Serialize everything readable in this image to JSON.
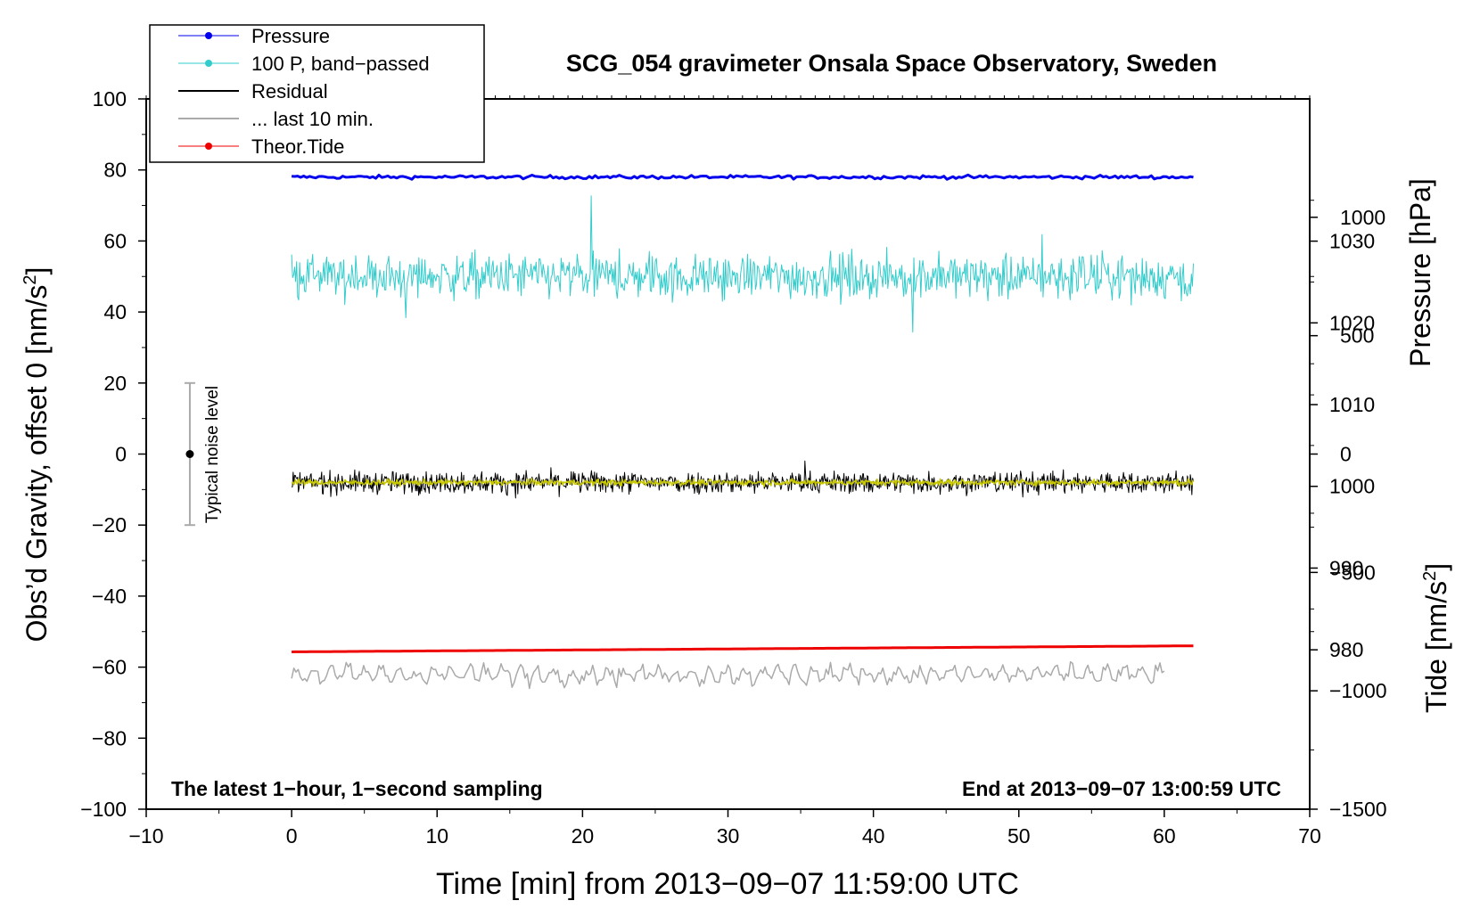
{
  "chart_data": {
    "type": "line",
    "title": "SCG_054 gravimeter Onsala Space Observatory, Sweden",
    "xlabel": "Time [min] from 2013−09−07 11:59:00 UTC",
    "ylabel_main": "Obs’d Gravity, offset 0 [nm/s",
    "ylabel_main_sup": "2",
    "ylabel_main_end": "]",
    "ylabel_pressure": "Pressure [hPa]",
    "ylabel_tide": "Tide [nm/s",
    "ylabel_tide_sup": "2",
    "ylabel_tide_end": "]",
    "xlim": [
      -10,
      70
    ],
    "ylim": [
      -100,
      100
    ],
    "x_ticks": [
      -10,
      0,
      10,
      20,
      30,
      40,
      50,
      60,
      70
    ],
    "x_tick_labels": [
      "−10",
      "0",
      "10",
      "20",
      "30",
      "40",
      "50",
      "60",
      "70"
    ],
    "y_ticks": [
      -100,
      -80,
      -60,
      -40,
      -20,
      0,
      20,
      40,
      60,
      80,
      100
    ],
    "y_tick_labels": [
      "−100",
      "−80",
      "−60",
      "−40",
      "−20",
      "0",
      "20",
      "40",
      "60",
      "80",
      "100"
    ],
    "pressure_axis": {
      "ticks": [
        980,
        990,
        1000,
        1010,
        1020,
        1030
      ],
      "tick_labels": [
        "980",
        "990",
        "1000",
        "1010",
        "1020",
        "1030"
      ],
      "range": [
        960.5,
        1047.4
      ]
    },
    "tide_axis": {
      "ticks": [
        -1500,
        -1000,
        -500,
        0,
        500,
        1000
      ],
      "tick_labels": [
        "−1500",
        "−1000",
        "−500",
        "0",
        "500",
        "1000"
      ],
      "range": [
        -1500,
        1500
      ]
    },
    "legend": {
      "position": "top-left",
      "items": [
        {
          "label": "Pressure",
          "color": "#0000ee",
          "marker": true
        },
        {
          "label": "100 P, band−passed",
          "color": "#33cccc",
          "marker": true
        },
        {
          "label": "Residual",
          "color": "#000000",
          "marker": false
        },
        {
          "label": "... last 10 min.",
          "color": "#aaaaaa",
          "marker": false
        },
        {
          "label": "Theor.Tide",
          "color": "#ee0000",
          "marker": true
        }
      ]
    },
    "series": [
      {
        "name": "Pressure",
        "color": "#0000ee",
        "x_range": [
          0,
          62
        ],
        "y_level": 78,
        "noise": 0.35,
        "width": 3
      },
      {
        "name": "100 P, band−passed",
        "color": "#33cccc",
        "x_range": [
          0,
          62
        ],
        "y_level": 50,
        "noise": 4.5,
        "width": 1
      },
      {
        "name": "Residual",
        "color": "#000000",
        "x_range": [
          0,
          62
        ],
        "y_level": -8,
        "noise": 2.2,
        "width": 1
      },
      {
        "name": "",
        "color": "#c8c800",
        "x_range": [
          0,
          62
        ],
        "y_level": -8,
        "noise": 0.6,
        "width": 1.5
      },
      {
        "name": "... last 10 min.",
        "color": "#aaaaaa",
        "x_range": [
          0,
          60
        ],
        "y_level": -62,
        "noise": 3,
        "width": 1.5
      },
      {
        "name": "Theor.Tide",
        "color": "#ee0000",
        "x_range": [
          0,
          62
        ],
        "y_start": -55.7,
        "y_end": -54,
        "width": 3
      }
    ],
    "noise_bar": {
      "label": "Typical noise level",
      "x": -7,
      "center": 0,
      "range": [
        -20,
        20
      ],
      "color": "#aaaaaa"
    },
    "annotations": {
      "bottom_left": "The latest 1−hour, 1−second sampling",
      "bottom_right": "End at 2013−09−07 13:00:59 UTC"
    },
    "colors": {
      "pressure": "#0000ee",
      "bandpassed": "#33cccc",
      "residual": "#000000",
      "residual_smooth": "#c8c800",
      "last10": "#aaaaaa",
      "tide": "#ee0000"
    }
  }
}
